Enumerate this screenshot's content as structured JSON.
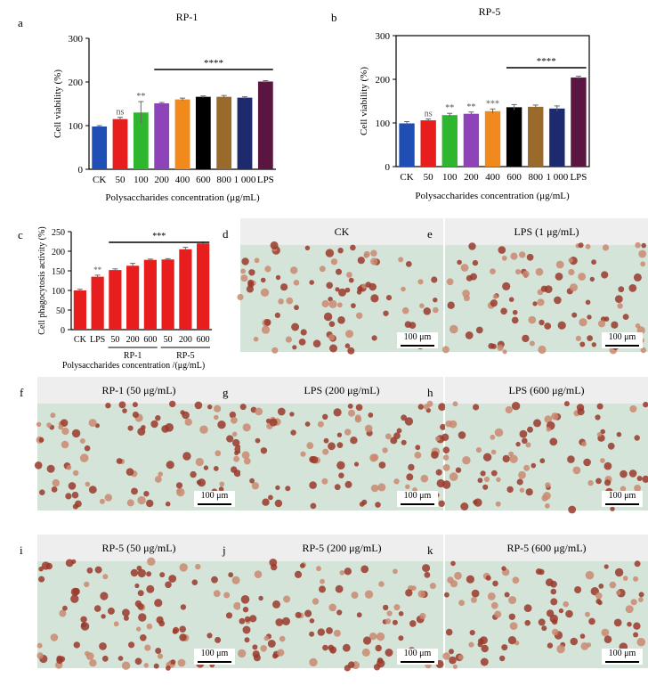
{
  "chart_data": [
    {
      "type": "bar",
      "panel": "a",
      "title": "RP-1",
      "categories": [
        "CK",
        "50",
        "100",
        "200",
        "400",
        "600",
        "800",
        "1 000",
        "LPS"
      ],
      "values": [
        98,
        115,
        130,
        151,
        160,
        166,
        166,
        164,
        201
      ],
      "errors": [
        2,
        4,
        25,
        2,
        3,
        2,
        3,
        2,
        2
      ],
      "colors": [
        "#1f4fb4",
        "#e81e1e",
        "#2fb62f",
        "#8e44b8",
        "#f08a1c",
        "#000000",
        "#9a6a2a",
        "#1e2a6e",
        "#5a1640"
      ],
      "significance": [
        "",
        "ns",
        "**",
        "",
        "",
        "",
        "",
        "",
        ""
      ],
      "bracket_label": "****",
      "xlabel": "Polysaccharides concentration (μg/mL)",
      "ylabel": "Cell viability (%)",
      "ylim": [
        0,
        300
      ],
      "yticks": [
        "0",
        "100",
        "200",
        "300"
      ]
    },
    {
      "type": "bar",
      "panel": "b",
      "title": "RP-5",
      "categories": [
        "CK",
        "50",
        "100",
        "200",
        "400",
        "600",
        "800",
        "1 000",
        "LPS"
      ],
      "values": [
        99,
        106,
        118,
        121,
        127,
        136,
        137,
        133,
        204
      ],
      "errors": [
        4,
        3,
        4,
        4,
        5,
        6,
        4,
        6,
        3
      ],
      "colors": [
        "#1f4fb4",
        "#e81e1e",
        "#2fb62f",
        "#8e44b8",
        "#f08a1c",
        "#000000",
        "#9a6a2a",
        "#1e2a6e",
        "#5a1640"
      ],
      "significance": [
        "",
        "ns",
        "**",
        "**",
        "***",
        "",
        "",
        "",
        ""
      ],
      "bracket_label": "****",
      "xlabel": "Polysaccharides concentration (μg/mL)",
      "ylabel": "Cell viability (%)",
      "ylim": [
        0,
        300
      ],
      "yticks": [
        "0",
        "100",
        "200",
        "300"
      ]
    },
    {
      "type": "bar",
      "panel": "c",
      "title": "",
      "categories": [
        "CK",
        "LPS",
        "50",
        "200",
        "600",
        "50",
        "200",
        "600"
      ],
      "groups": [
        "RP-1",
        "RP-5"
      ],
      "values": [
        100,
        135,
        152,
        163,
        178,
        179,
        205,
        220
      ],
      "errors": [
        3,
        4,
        3,
        6,
        2,
        2,
        5,
        3
      ],
      "colors": [
        "#e81e1e",
        "#e81e1e",
        "#e81e1e",
        "#e81e1e",
        "#e81e1e",
        "#e81e1e",
        "#e81e1e",
        "#e81e1e"
      ],
      "significance": [
        "",
        "**",
        "",
        "",
        "",
        "",
        "",
        ""
      ],
      "bracket_label": "***",
      "xlabel": "Polysaccharides concentration /(μg/mL)",
      "ylabel": "Cell phagocytosis activity (%)",
      "ylim": [
        0,
        250
      ],
      "yticks": [
        "0",
        "50",
        "100",
        "150",
        "200",
        "250"
      ]
    }
  ],
  "micrographs": [
    {
      "letter": "d",
      "label": "CK",
      "scale": "100 μm"
    },
    {
      "letter": "e",
      "label": "LPS (1 μg/mL)",
      "scale": "100 μm"
    },
    {
      "letter": "f",
      "label": "RP-1 (50 μg/mL)",
      "scale": "100 μm"
    },
    {
      "letter": "g",
      "label": "LPS (200 μg/mL)",
      "scale": "100 μm"
    },
    {
      "letter": "h",
      "label": "LPS (600 μg/mL)",
      "scale": "100 μm"
    },
    {
      "letter": "i",
      "label": "RP-5 (50 μg/mL)",
      "scale": "100 μm"
    },
    {
      "letter": "j",
      "label": "RP-5 (200 μg/mL)",
      "scale": "100 μm"
    },
    {
      "letter": "k",
      "label": "RP-5 (600 μg/mL)",
      "scale": "100 μm"
    }
  ],
  "colors": {
    "cell": "#9a3a2a",
    "cell_light": "#c98a70",
    "background": "#d5e4d9"
  }
}
